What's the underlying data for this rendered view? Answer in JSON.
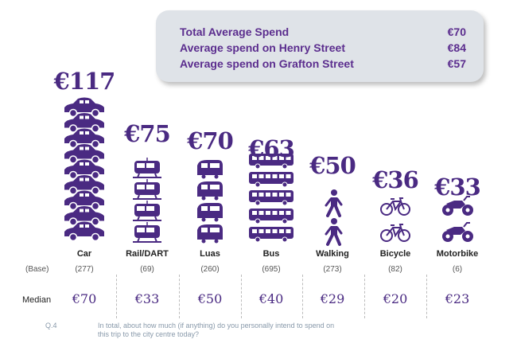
{
  "summary": {
    "rows": [
      {
        "label": "Total Average Spend",
        "value": "€70"
      },
      {
        "label": "Average spend on Henry Street",
        "value": "€84"
      },
      {
        "label": "Average spend on Grafton Street",
        "value": "€57"
      }
    ]
  },
  "chart_data": {
    "type": "bar",
    "categories": [
      "Car",
      "Rail/DART",
      "Luas",
      "Bus",
      "Walking",
      "Bicycle",
      "Motorbike"
    ],
    "values": [
      117,
      75,
      70,
      63,
      50,
      36,
      33
    ],
    "value_labels": [
      "€117",
      "€75",
      "€70",
      "€63",
      "€50",
      "€36",
      "€33"
    ],
    "icons": [
      "car-icon",
      "train-icon",
      "tram-icon",
      "bus-icon",
      "walking-icon",
      "bicycle-icon",
      "motorbike-icon"
    ],
    "icon_counts": [
      9,
      4,
      4,
      5,
      2,
      2,
      2
    ],
    "base_label": "(Base)",
    "bases": [
      "(277)",
      "(69)",
      "(260)",
      "(695)",
      "(273)",
      "(82)",
      "(6)"
    ],
    "median_label": "Median",
    "medians": [
      "€70",
      "€33",
      "€50",
      "€40",
      "€29",
      "€20",
      "€23"
    ],
    "colors": {
      "icon": "#4a2a82",
      "value": "#4a2a82",
      "summary_text": "#5b2d8e",
      "summary_bg": "#dfe3e8"
    }
  },
  "footnote": {
    "qnum": "Q.4",
    "text": "In total, about how much (if anything) do you personally intend to spend on this trip to the city centre today?"
  }
}
